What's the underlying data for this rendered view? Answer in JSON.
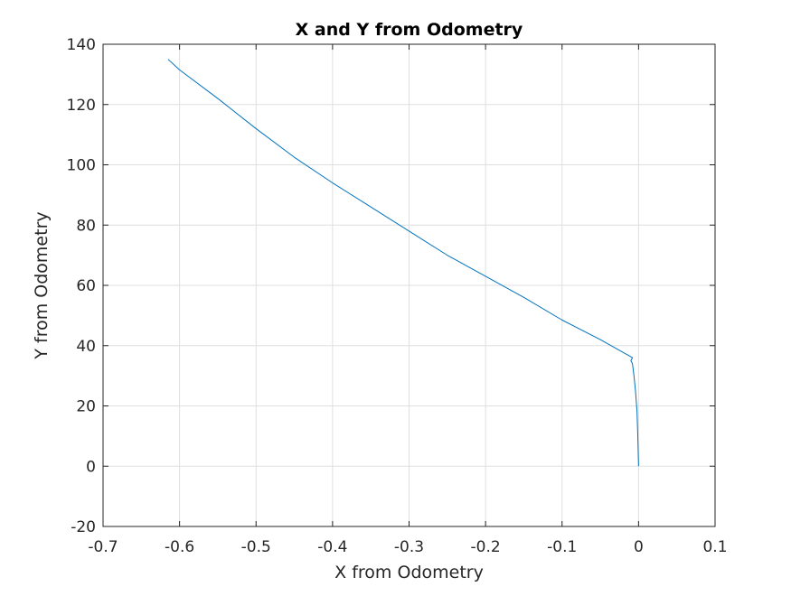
{
  "chart_data": {
    "type": "line",
    "title": "X and Y from Odometry",
    "xlabel": "X from Odometry",
    "ylabel": "Y from Odometry",
    "xlim": [
      -0.7,
      0.1
    ],
    "ylim": [
      -20,
      140
    ],
    "xticks": [
      -0.7,
      -0.6,
      -0.5,
      -0.4,
      -0.3,
      -0.2,
      -0.1,
      0,
      0.1
    ],
    "yticks": [
      -20,
      0,
      20,
      40,
      60,
      80,
      100,
      120,
      140
    ],
    "xtick_labels": [
      "-0.7",
      "-0.6",
      "-0.5",
      "-0.4",
      "-0.3",
      "-0.2",
      "-0.1",
      "0",
      "0.1"
    ],
    "ytick_labels": [
      "-20",
      "0",
      "20",
      "40",
      "60",
      "80",
      "100",
      "120",
      "140"
    ],
    "grid": true,
    "series": [
      {
        "color": "#0072BD",
        "x": [
          0.0,
          -0.001,
          -0.002,
          -0.004,
          -0.006,
          -0.008,
          -0.01,
          -0.008,
          -0.05,
          -0.1,
          -0.15,
          -0.2,
          -0.25,
          -0.3,
          -0.35,
          -0.4,
          -0.45,
          -0.5,
          -0.55,
          -0.6,
          -0.615
        ],
        "y": [
          0,
          10,
          18,
          25,
          30,
          34,
          35,
          36,
          42,
          48.5,
          56,
          63,
          70,
          78,
          86,
          94,
          102.5,
          112,
          122,
          131.5,
          135
        ]
      }
    ]
  }
}
